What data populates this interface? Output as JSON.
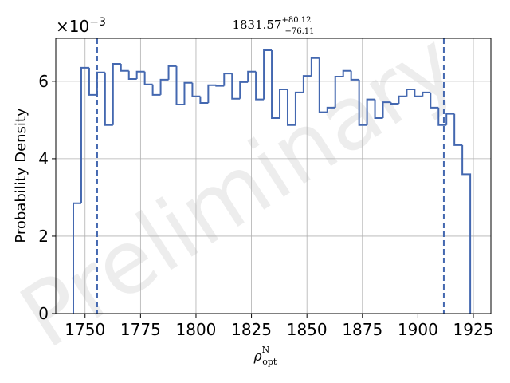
{
  "chart_data": {
    "type": "histogram_step",
    "title": "1831.57",
    "title_upper": "+80.12",
    "title_lower": "−76.11",
    "xlabel": "ρ",
    "xlabel_sub": "opt",
    "xlabel_sup": "N",
    "ylabel": "Probability Density",
    "offset_base": "×10",
    "offset_exponent": "−3",
    "watermark": "Preliminary",
    "color": "#4468b0",
    "bins": [
      1744.7,
      1748.28,
      1751.86,
      1755.43,
      1759.01,
      1762.59,
      1766.17,
      1769.75,
      1773.32,
      1776.9,
      1780.48,
      1784.06,
      1787.64,
      1791.21,
      1794.79,
      1798.37,
      1801.95,
      1805.53,
      1809.1,
      1812.68,
      1816.26,
      1819.84,
      1823.42,
      1826.99,
      1830.57,
      1834.15,
      1837.73,
      1841.31,
      1844.88,
      1848.46,
      1852.04,
      1855.62,
      1859.2,
      1862.77,
      1866.35,
      1869.93,
      1873.51,
      1877.09,
      1880.66,
      1884.24,
      1887.82,
      1891.4,
      1894.98,
      1898.55,
      1902.13,
      1905.71,
      1909.29,
      1912.87,
      1916.44,
      1920.02,
      1923.6
    ],
    "values": [
      2.85,
      6.35,
      5.65,
      6.23,
      4.87,
      6.45,
      6.27,
      6.06,
      6.25,
      5.92,
      5.65,
      6.04,
      6.39,
      5.4,
      5.96,
      5.61,
      5.44,
      5.9,
      5.88,
      6.2,
      5.55,
      5.98,
      6.25,
      5.53,
      6.8,
      5.05,
      5.79,
      4.87,
      5.71,
      6.14,
      6.6,
      5.2,
      5.32,
      6.12,
      6.27,
      6.04,
      4.87,
      5.53,
      5.05,
      5.46,
      5.42,
      5.61,
      5.79,
      5.61,
      5.71,
      5.32,
      4.87,
      5.16,
      4.35,
      3.6
    ],
    "vlines": [
      1755.46,
      1911.69
    ],
    "xlim": [
      1736.8,
      1932.9
    ],
    "xticks": [
      1750,
      1775,
      1800,
      1825,
      1850,
      1875,
      1900,
      1925
    ],
    "ylim": [
      0,
      7.11
    ],
    "yticks": [
      0,
      2,
      4,
      6
    ],
    "grid": true
  }
}
